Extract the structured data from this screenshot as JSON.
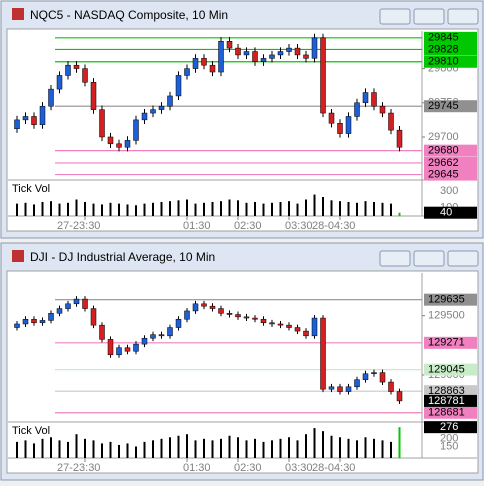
{
  "chart_data": [
    {
      "type": "candlestick",
      "title": "NQC5 - NASDAQ Composite, 10 Min",
      "categories": [
        null,
        null,
        null,
        null,
        null,
        null,
        null,
        null,
        "27-23:30",
        null,
        null,
        null,
        null,
        null,
        null,
        null,
        null,
        null,
        null,
        null,
        "01:30",
        null,
        null,
        null,
        null,
        null,
        "02:30",
        null,
        null,
        null,
        null,
        null,
        "03:30",
        null,
        null,
        null,
        null,
        null,
        "28-04:30",
        null,
        null,
        null,
        null,
        null,
        null,
        null
      ],
      "open": [
        29712,
        29725,
        29730,
        29718,
        29745,
        29770,
        29790,
        29805,
        29800,
        29780,
        29740,
        29700,
        29690,
        29685,
        29695,
        29725,
        29735,
        29740,
        29745,
        29760,
        29790,
        29800,
        29815,
        29805,
        29795,
        29840,
        29830,
        29820,
        29825,
        29810,
        29815,
        29820,
        29825,
        29830,
        29820,
        29815,
        29845,
        29735,
        29720,
        29705,
        29730,
        29750,
        29765,
        29745,
        29735,
        29710
      ],
      "high": [
        29731,
        29736,
        29736,
        29751,
        29776,
        29796,
        29811,
        29811,
        29806,
        29786,
        29746,
        29706,
        29696,
        29701,
        29731,
        29741,
        29746,
        29751,
        29766,
        29796,
        29806,
        29821,
        29821,
        29811,
        29846,
        29846,
        29836,
        29831,
        29831,
        29821,
        29826,
        29831,
        29836,
        29836,
        29826,
        29851,
        29851,
        29741,
        29726,
        29736,
        29756,
        29771,
        29771,
        29751,
        29741,
        29716
      ],
      "low": [
        29706,
        29719,
        29712,
        29712,
        29739,
        29764,
        29784,
        29794,
        29774,
        29734,
        29694,
        29684,
        29679,
        29679,
        29689,
        29719,
        29729,
        29734,
        29739,
        29754,
        29784,
        29794,
        29799,
        29789,
        29789,
        29824,
        29814,
        29814,
        29804,
        29804,
        29809,
        29814,
        29819,
        29814,
        29809,
        29809,
        29729,
        29714,
        29699,
        29699,
        29724,
        29744,
        29739,
        29729,
        29704,
        29679
      ],
      "close": [
        29725,
        29730,
        29718,
        29745,
        29770,
        29790,
        29805,
        29800,
        29780,
        29740,
        29700,
        29690,
        29685,
        29695,
        29725,
        29735,
        29740,
        29745,
        29760,
        29790,
        29800,
        29815,
        29805,
        29795,
        29840,
        29830,
        29820,
        29825,
        29810,
        29815,
        29820,
        29825,
        29830,
        29820,
        29815,
        29845,
        29735,
        29720,
        29705,
        29730,
        29750,
        29765,
        29745,
        29735,
        29710,
        29685
      ],
      "up_color": "#1f5fd6",
      "down_color": "#d42020",
      "ylim": [
        29640,
        29855
      ],
      "yticks": [
        29700,
        29750,
        29800
      ],
      "levels": [
        {
          "value": 29845,
          "color": "#00c800"
        },
        {
          "value": 29828,
          "color": "#00c800"
        },
        {
          "value": 29810,
          "color": "#00c800"
        },
        {
          "value": 29745,
          "color": "#909090"
        },
        {
          "value": 29680,
          "color": "#f080c0"
        },
        {
          "value": 29662,
          "color": "#f080c0"
        },
        {
          "value": 29645,
          "color": "#f080c0"
        }
      ],
      "volume": {
        "label": "Tick Vol",
        "values": [
          150,
          160,
          140,
          170,
          180,
          150,
          160,
          200,
          170,
          150,
          140,
          160,
          150,
          140,
          130,
          150,
          160,
          170,
          180,
          190,
          200,
          150,
          160,
          170,
          180,
          200,
          190,
          160,
          170,
          150,
          160,
          170,
          180,
          150,
          200,
          260,
          230,
          190,
          180,
          170,
          160,
          180,
          170,
          160,
          150,
          40
        ],
        "ylim": [
          0,
          400
        ],
        "yticks": [
          100,
          300
        ]
      }
    },
    {
      "type": "candlestick",
      "title": "DJI - DJ Industrial Average, 10 Min",
      "categories": [
        null,
        null,
        null,
        null,
        null,
        null,
        null,
        null,
        "27-23:30",
        null,
        null,
        null,
        null,
        null,
        null,
        null,
        null,
        null,
        null,
        null,
        "01:30",
        null,
        null,
        null,
        null,
        null,
        "02:30",
        null,
        null,
        null,
        null,
        null,
        "03:30",
        null,
        null,
        null,
        null,
        null,
        "28-04:30",
        null,
        null,
        null,
        null,
        null,
        null,
        null
      ],
      "open": [
        129400,
        129430,
        129470,
        129440,
        129460,
        129520,
        129560,
        129600,
        129640,
        129560,
        129420,
        129300,
        129170,
        129230,
        129200,
        129260,
        129310,
        129340,
        129330,
        129400,
        129470,
        129540,
        129600,
        129580,
        129560,
        129520,
        129510,
        129490,
        129480,
        129470,
        129440,
        129430,
        129420,
        129400,
        129370,
        129330,
        129480,
        128880,
        128900,
        128860,
        128900,
        128960,
        129010,
        129020,
        128940,
        128860
      ],
      "high": [
        129455,
        129495,
        129495,
        129485,
        129545,
        129585,
        129625,
        129665,
        129665,
        129585,
        129445,
        129325,
        129255,
        129255,
        129285,
        129335,
        129365,
        129365,
        129425,
        129495,
        129565,
        129625,
        129625,
        129605,
        129585,
        129545,
        129535,
        129515,
        129505,
        129495,
        129465,
        129455,
        129445,
        129425,
        129395,
        129505,
        129505,
        128925,
        128925,
        128925,
        128985,
        129035,
        129045,
        129045,
        128965,
        128885
      ],
      "low": [
        129375,
        129405,
        129415,
        129415,
        129435,
        129495,
        129535,
        129575,
        129535,
        129395,
        129275,
        129145,
        129145,
        129175,
        129175,
        129235,
        129285,
        129305,
        129305,
        129375,
        129445,
        129515,
        129555,
        129535,
        129495,
        129485,
        129465,
        129455,
        129445,
        129415,
        129405,
        129395,
        129375,
        129345,
        129305,
        129305,
        128855,
        128855,
        128835,
        128835,
        128875,
        128935,
        128985,
        128915,
        128835,
        128756
      ],
      "close": [
        129430,
        129470,
        129440,
        129460,
        129520,
        129560,
        129600,
        129640,
        129560,
        129420,
        129300,
        129170,
        129230,
        129200,
        129260,
        129310,
        129340,
        129330,
        129400,
        129470,
        129540,
        129600,
        129580,
        129560,
        129520,
        129510,
        129490,
        129480,
        129470,
        129440,
        129430,
        129420,
        129400,
        129370,
        129330,
        129480,
        128880,
        128900,
        128860,
        128900,
        128960,
        129010,
        129020,
        128940,
        128860,
        128781
      ],
      "up_color": "#1f5fd6",
      "down_color": "#d42020",
      "ylim": [
        128620,
        129860
      ],
      "yticks": [
        129000,
        129500
      ],
      "levels": [
        {
          "value": 129635,
          "color": "#909090"
        },
        {
          "value": 129271,
          "color": "#f080c0"
        },
        {
          "value": 129045,
          "color": "#c8ecc8"
        },
        {
          "value": 128863,
          "color": "#c8c8c8"
        },
        {
          "value": 128681,
          "color": "#f080c0"
        }
      ],
      "volume": {
        "label": "Tick Vol",
        "values": [
          180,
          190,
          170,
          200,
          210,
          190,
          180,
          230,
          200,
          190,
          170,
          180,
          160,
          170,
          150,
          180,
          190,
          200,
          210,
          220,
          230,
          190,
          200,
          190,
          200,
          220,
          210,
          190,
          200,
          180,
          190,
          200,
          210,
          190,
          230,
          270,
          250,
          220,
          210,
          200,
          190,
          210,
          200,
          190,
          180,
          276
        ],
        "ylim": [
          75,
          290
        ],
        "yticks": [
          150,
          200
        ]
      }
    }
  ]
}
